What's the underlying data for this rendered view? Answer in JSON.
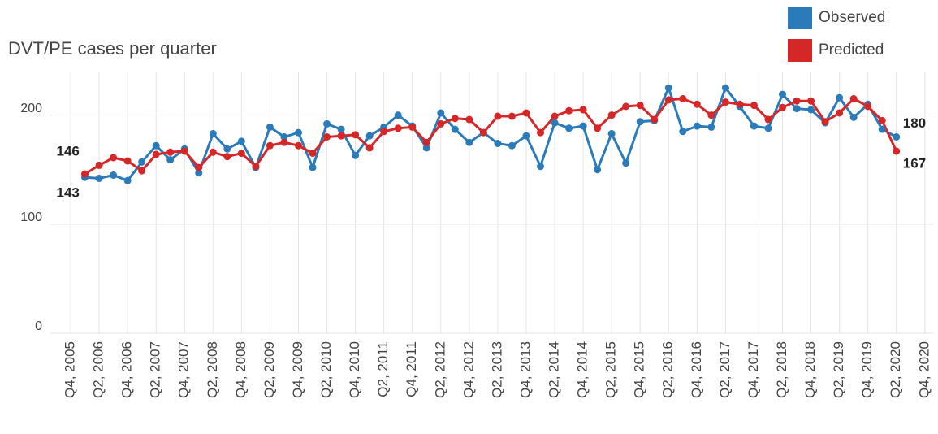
{
  "chart_data": {
    "type": "line",
    "subtitle": "DVT/PE cases per quarter",
    "categories": [
      "Q4, 2005",
      null,
      "Q2, 2006",
      null,
      "Q4, 2006",
      null,
      "Q2, 2007",
      null,
      "Q4, 2007",
      null,
      "Q2, 2008",
      null,
      "Q4, 2008",
      null,
      "Q2, 2009",
      null,
      "Q4, 2009",
      null,
      "Q2, 2010",
      null,
      "Q4, 2010",
      null,
      "Q2, 2011",
      null,
      "Q4, 2011",
      null,
      "Q2, 2012",
      null,
      "Q4, 2012",
      null,
      "Q2, 2013",
      null,
      "Q4, 2013",
      null,
      "Q2, 2014",
      null,
      "Q4, 2014",
      null,
      "Q2, 2015",
      null,
      "Q4, 2015",
      null,
      "Q2, 2016",
      null,
      "Q4, 2016",
      null,
      "Q2, 2017",
      null,
      "Q4, 2017",
      null,
      "Q2, 2018",
      null,
      "Q4, 2018",
      null,
      "Q2, 2019",
      null,
      "Q4, 2019",
      null,
      "Q2, 2020",
      null,
      "Q4, 2020"
    ],
    "series": [
      {
        "name": "Observed",
        "color": "#2b7bba",
        "values": [
          null,
          143,
          142,
          145,
          140,
          157,
          172,
          159,
          169,
          147,
          183,
          169,
          176,
          152,
          189,
          180,
          184,
          152,
          192,
          187,
          163,
          181,
          189,
          200,
          190,
          170,
          202,
          187,
          175,
          184,
          174,
          172,
          181,
          153,
          193,
          188,
          190,
          150,
          183,
          156,
          194,
          195,
          225,
          185,
          190,
          189,
          225,
          208,
          190,
          188,
          219,
          206,
          205,
          193,
          216,
          198,
          210,
          187,
          180,
          null,
          null
        ]
      },
      {
        "name": "Predicted",
        "color": "#d62728",
        "values": [
          null,
          146,
          154,
          161,
          158,
          149,
          164,
          166,
          167,
          152,
          166,
          162,
          165,
          153,
          172,
          175,
          172,
          165,
          180,
          181,
          182,
          170,
          185,
          188,
          189,
          175,
          192,
          197,
          196,
          184,
          199,
          199,
          202,
          184,
          199,
          204,
          205,
          188,
          200,
          208,
          209,
          196,
          214,
          215,
          210,
          200,
          212,
          210,
          209,
          196,
          207,
          213,
          213,
          194,
          202,
          215,
          208,
          195,
          167,
          null,
          null
        ]
      }
    ],
    "ylim": [
      0,
      240
    ],
    "yticks": [
      0,
      100,
      200
    ],
    "grid": true,
    "legend": "top-right"
  }
}
